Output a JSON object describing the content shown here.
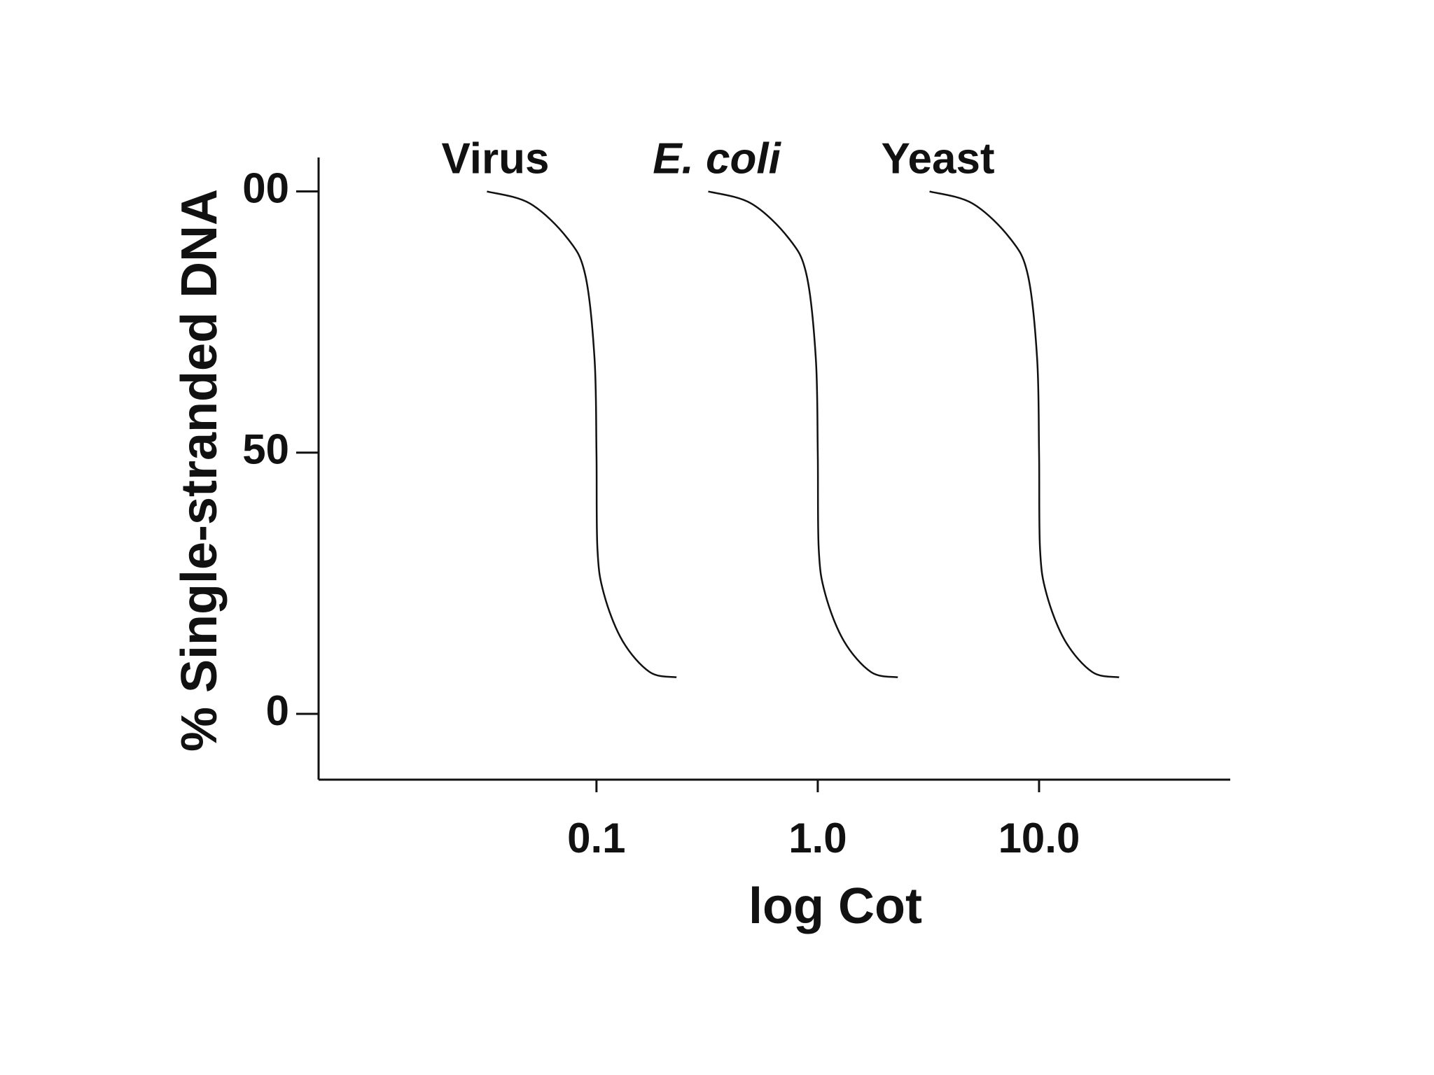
{
  "chart_data": {
    "type": "line",
    "x_label": "log Cot",
    "y_label": "% Single-stranded DNA",
    "x_log": true,
    "xlim": [
      0.00555,
      73.1
    ],
    "ylim": [
      -12.6,
      106.5
    ],
    "xticks": [
      0.1,
      {
        "value": 1,
        "label": "1.0"
      },
      {
        "value": 10,
        "label": "10.0"
      }
    ],
    "yticks": [
      0,
      50,
      {
        "value": 100,
        "label": "00"
      }
    ],
    "series": [
      {
        "name": "Virus",
        "color": "#111111",
        "x": [
          0.032,
          0.05,
          0.074,
          0.089,
          0.098,
          0.1,
          0.101,
          0.108,
          0.131,
          0.174,
          0.23
        ],
        "values": [
          100,
          97.7,
          91,
          84,
          68,
          50,
          31.6,
          23,
          14,
          8,
          7
        ]
      },
      {
        "name": "E. coli",
        "color": "#111111",
        "x": [
          0.32,
          0.5,
          0.74,
          0.89,
          0.98,
          1,
          1.01,
          1.08,
          1.31,
          1.74,
          2.3
        ],
        "values": [
          100,
          97.7,
          91,
          84,
          68,
          50,
          31.6,
          23,
          14,
          8,
          7
        ]
      },
      {
        "name": "Yeast",
        "color": "#111111",
        "x": [
          3.2,
          5,
          7.4,
          8.9,
          9.8,
          10,
          10.1,
          10.8,
          13.1,
          17.4,
          23
        ],
        "values": [
          100,
          97.7,
          91,
          84,
          68,
          50,
          31.6,
          23,
          14,
          8,
          7
        ]
      }
    ]
  }
}
